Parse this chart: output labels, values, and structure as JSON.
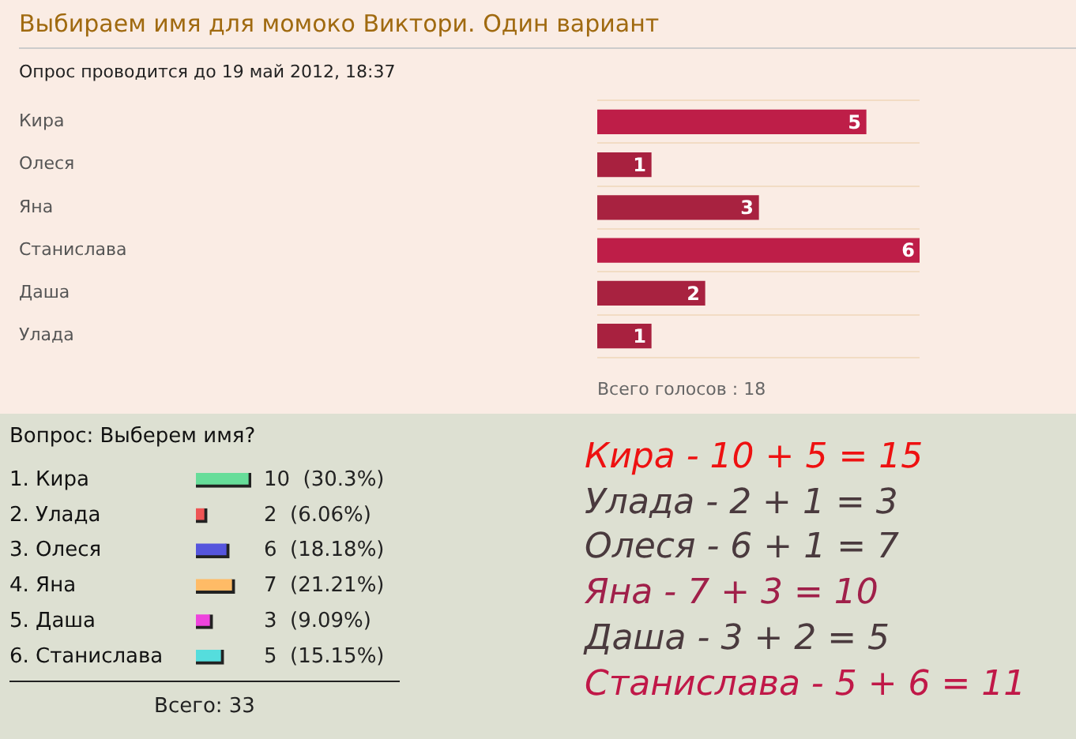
{
  "chart_data": [
    {
      "type": "bar",
      "orientation": "horizontal",
      "title": "Выбираем имя для момоко Виктори. Один вариант",
      "subtitle": "Опрос проводится до 19 май 2012, 18:37",
      "categories": [
        "Кира",
        "Олеся",
        "Яна",
        "Станислава",
        "Даша",
        "Улада"
      ],
      "values": [
        5,
        1,
        3,
        6,
        2,
        1
      ],
      "colors": [
        "#be1e48",
        "#a8213f",
        "#a82240",
        "#be1e48",
        "#a82240",
        "#a8213f"
      ],
      "data_labels": true,
      "grid": "y",
      "legend": false,
      "annotations": [
        "Всего голосов : 18"
      ]
    },
    {
      "type": "bar",
      "orientation": "horizontal",
      "title": "Вопрос: Выберем имя?",
      "categories": [
        "1. Кира",
        "2. Улада",
        "3. Олеся",
        "4. Яна",
        "5. Даша",
        "6. Станислава"
      ],
      "values": [
        10,
        2,
        6,
        7,
        3,
        5
      ],
      "colors": [
        "#66dd99",
        "#ee5555",
        "#5555dd",
        "#ffbb66",
        "#ee44dd",
        "#55dddd"
      ],
      "value_labels": [
        "10  (30.3%)",
        "2  (6.06%)",
        "6  (18.18%)",
        "7  (21.21%)",
        "3  (9.09%)",
        "5  (15.15%)"
      ],
      "legend": false,
      "annotations": [
        "Всего:  33"
      ]
    },
    {
      "type": "other",
      "annotations": [
        "Кира - 10 + 5 = 15",
        "Улада - 2 + 1 = 3",
        "Олеся - 6 + 1 = 7",
        "Яна - 7 + 3 = 10",
        "Даша - 3 + 2 = 5",
        "Станислава - 5 + 6 = 11"
      ],
      "colors": [
        "#ee1111",
        "#4a3a3e",
        "#4a3a3e",
        "#a0204a",
        "#4a3a3e",
        "#c01848"
      ]
    }
  ]
}
